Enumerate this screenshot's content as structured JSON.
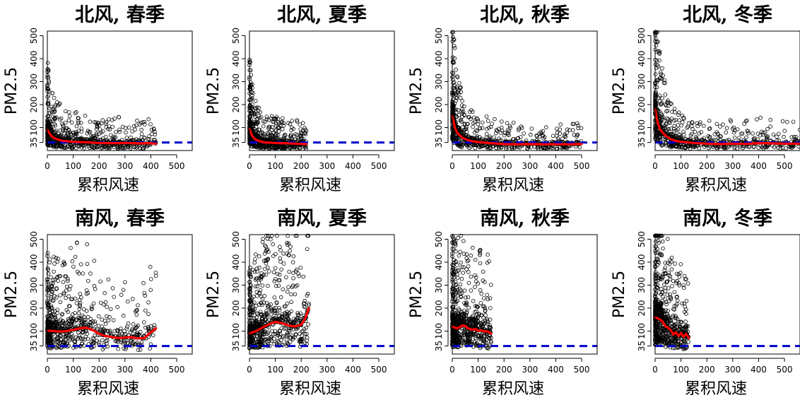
{
  "chart_data": [
    {
      "type": "scatter",
      "title": "北风, 春季",
      "xlabel": "累积风速",
      "ylabel": "PM2.5",
      "xlim": [
        0,
        560
      ],
      "ylim": [
        0,
        520
      ],
      "xticks": [
        0,
        100,
        200,
        300,
        400,
        500
      ],
      "yticks": [
        35,
        100,
        200,
        300,
        400,
        500
      ],
      "reference_line": 35,
      "point_max_x": 420,
      "point_style": "open-circle",
      "smooth_line": {
        "x": [
          0,
          10,
          20,
          40,
          60,
          80,
          100,
          150,
          200,
          250,
          300,
          350,
          400,
          420
        ],
        "y": [
          90,
          72,
          58,
          48,
          42,
          40,
          38,
          36,
          33,
          32,
          33,
          31,
          32,
          30
        ]
      }
    },
    {
      "type": "scatter",
      "title": "北风, 夏季",
      "xlabel": "累积风速",
      "ylabel": "PM2.5",
      "xlim": [
        0,
        560
      ],
      "ylim": [
        0,
        520
      ],
      "xticks": [
        0,
        100,
        200,
        300,
        400,
        500
      ],
      "yticks": [
        35,
        100,
        200,
        300,
        400,
        500
      ],
      "reference_line": 35,
      "point_max_x": 220,
      "point_style": "open-circle",
      "smooth_line": {
        "x": [
          0,
          5,
          10,
          20,
          40,
          60,
          80,
          100,
          120,
          150,
          180,
          200,
          220
        ],
        "y": [
          95,
          80,
          65,
          50,
          40,
          35,
          34,
          33,
          32,
          31,
          30,
          29,
          28
        ]
      }
    },
    {
      "type": "scatter",
      "title": "北风, 秋季",
      "xlabel": "累积风速",
      "ylabel": "PM2.5",
      "xlim": [
        0,
        560
      ],
      "ylim": [
        0,
        520
      ],
      "xticks": [
        0,
        100,
        200,
        300,
        400,
        500
      ],
      "yticks": [
        35,
        100,
        200,
        300,
        400,
        500
      ],
      "reference_line": 35,
      "point_max_x": 500,
      "point_style": "open-circle",
      "smooth_line": {
        "x": [
          0,
          5,
          10,
          20,
          40,
          60,
          80,
          100,
          150,
          200,
          250,
          300,
          350,
          400,
          450,
          500
        ],
        "y": [
          150,
          125,
          100,
          75,
          55,
          45,
          40,
          37,
          32,
          28,
          27,
          28,
          27,
          27,
          27,
          28
        ]
      }
    },
    {
      "type": "scatter",
      "title": "北风, 冬季",
      "xlabel": "累积风速",
      "ylabel": "PM2.5",
      "xlim": [
        0,
        560
      ],
      "ylim": [
        0,
        520
      ],
      "xticks": [
        0,
        100,
        200,
        300,
        400,
        500
      ],
      "yticks": [
        35,
        100,
        200,
        300,
        400,
        500
      ],
      "reference_line": 35,
      "point_max_x": 560,
      "point_style": "open-circle",
      "smooth_line": {
        "x": [
          0,
          5,
          10,
          20,
          40,
          60,
          80,
          100,
          150,
          200,
          250,
          300,
          350,
          400,
          450,
          500,
          560
        ],
        "y": [
          180,
          150,
          120,
          90,
          65,
          50,
          42,
          38,
          33,
          30,
          28,
          30,
          29,
          32,
          31,
          30,
          30
        ]
      }
    },
    {
      "type": "scatter",
      "title": "南风, 春季",
      "xlabel": "累积风速",
      "ylabel": "PM2.5",
      "xlim": [
        0,
        560
      ],
      "ylim": [
        0,
        520
      ],
      "xticks": [
        0,
        100,
        200,
        300,
        400,
        500
      ],
      "yticks": [
        35,
        100,
        200,
        300,
        400,
        500
      ],
      "reference_line": 35,
      "point_max_x": 420,
      "point_style": "open-circle",
      "smooth_line": {
        "x": [
          0,
          25,
          50,
          75,
          100,
          125,
          150,
          175,
          200,
          225,
          250,
          275,
          300,
          325,
          350,
          375,
          400,
          420
        ],
        "y": [
          102,
          100,
          98,
          100,
          106,
          112,
          115,
          105,
          88,
          78,
          74,
          70,
          72,
          74,
          68,
          70,
          95,
          112
        ]
      }
    },
    {
      "type": "scatter",
      "title": "南风, 夏季",
      "xlabel": "累积风速",
      "ylabel": "PM2.5",
      "xlim": [
        0,
        560
      ],
      "ylim": [
        0,
        520
      ],
      "xticks": [
        0,
        100,
        200,
        300,
        400,
        500
      ],
      "yticks": [
        35,
        100,
        200,
        300,
        400,
        500
      ],
      "reference_line": 35,
      "point_max_x": 230,
      "point_style": "open-circle",
      "smooth_line": {
        "x": [
          0,
          25,
          50,
          75,
          100,
          125,
          150,
          175,
          200,
          215,
          230
        ],
        "y": [
          90,
          100,
          115,
          130,
          140,
          135,
          125,
          120,
          128,
          155,
          200
        ]
      }
    },
    {
      "type": "scatter",
      "title": "南风, 秋季",
      "xlabel": "累积风速",
      "ylabel": "PM2.5",
      "xlim": [
        0,
        560
      ],
      "ylim": [
        0,
        520
      ],
      "xticks": [
        0,
        100,
        200,
        300,
        400,
        500
      ],
      "yticks": [
        35,
        100,
        200,
        300,
        400,
        500
      ],
      "reference_line": 35,
      "point_max_x": 150,
      "point_style": "open-circle",
      "smooth_line": {
        "x": [
          0,
          10,
          20,
          30,
          40,
          50,
          60,
          70,
          80,
          90,
          100,
          110,
          120,
          130,
          140,
          150
        ],
        "y": [
          120,
          115,
          112,
          118,
          125,
          122,
          112,
          108,
          106,
          110,
          100,
          104,
          98,
          100,
          96,
          90
        ]
      }
    },
    {
      "type": "scatter",
      "title": "南风, 冬季",
      "xlabel": "累积风速",
      "ylabel": "PM2.5",
      "xlim": [
        0,
        560
      ],
      "ylim": [
        0,
        520
      ],
      "xticks": [
        0,
        100,
        200,
        300,
        400,
        500
      ],
      "yticks": [
        35,
        100,
        200,
        300,
        400,
        500
      ],
      "reference_line": 35,
      "point_max_x": 130,
      "point_style": "open-circle",
      "smooth_line": {
        "x": [
          0,
          10,
          20,
          30,
          40,
          50,
          60,
          70,
          80,
          90,
          100,
          110,
          120,
          130
        ],
        "y": [
          160,
          155,
          150,
          140,
          120,
          115,
          105,
          85,
          95,
          78,
          92,
          75,
          88,
          70
        ]
      }
    }
  ],
  "colors": {
    "points": "#000000",
    "smooth_line": "#ff0000",
    "reference_line": "#0000cc",
    "axes": "#000000"
  }
}
